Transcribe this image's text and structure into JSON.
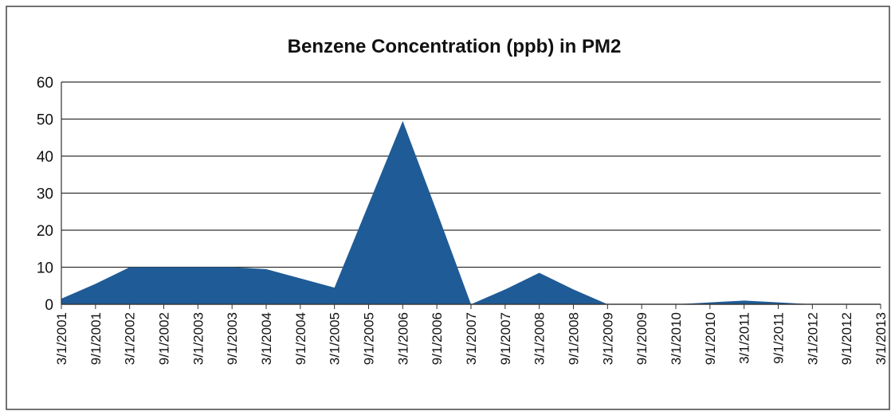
{
  "chart_data": {
    "type": "area",
    "title": "Benzene Concentration (ppb) in PM2",
    "categories": [
      "3/1/2001",
      "9/1/2001",
      "3/1/2002",
      "9/1/2002",
      "3/1/2003",
      "9/1/2003",
      "3/1/2004",
      "9/1/2004",
      "3/1/2005",
      "9/1/2005",
      "3/1/2006",
      "9/1/2006",
      "3/1/2007",
      "9/1/2007",
      "3/1/2008",
      "9/1/2008",
      "3/1/2009",
      "9/1/2009",
      "3/1/2010",
      "9/1/2010",
      "3/1/2011",
      "9/1/2011",
      "3/1/2012",
      "9/1/2012",
      "3/1/2013"
    ],
    "values": [
      1.5,
      5.5,
      10,
      10,
      10,
      10,
      9.5,
      7,
      4.5,
      27,
      49.5,
      25,
      0,
      4,
      8.5,
      4,
      0,
      0,
      0,
      0.5,
      1,
      0.5,
      0,
      0,
      0
    ],
    "color": "#1f5b96",
    "ylim": [
      0,
      60
    ],
    "yticks": [
      0,
      10,
      20,
      30,
      40,
      50,
      60
    ],
    "grid": true
  }
}
